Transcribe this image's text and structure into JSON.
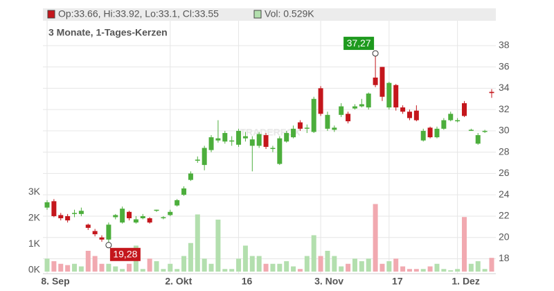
{
  "chart_data": {
    "type": "candlestick",
    "subtitle": "3 Monate, 1-Tages-Kerzen",
    "ohlc_label": "Op:33.66, Hi:33.92, Lo:33.1, Cl:33.55",
    "volume_label": "Vol: 0.529K",
    "watermark": "TRADERFOX",
    "max_label": "37,27",
    "min_label": "19,28",
    "up_color": "#4cae3c",
    "down_color": "#c4161c",
    "vol_up_color": "#b3dfae",
    "vol_down_color": "#f1a9b0",
    "categories": [
      "8. Sep",
      null,
      null,
      null,
      null,
      null,
      null,
      null,
      null,
      null,
      null,
      null,
      null,
      null,
      null,
      null,
      null,
      null,
      "2. Okt",
      null,
      null,
      null,
      null,
      null,
      null,
      null,
      null,
      null,
      "16",
      null,
      null,
      null,
      null,
      null,
      null,
      null,
      null,
      null,
      null,
      null,
      "3. Nov",
      null,
      null,
      null,
      null,
      null,
      null,
      null,
      null,
      null,
      "17",
      null,
      null,
      null,
      null,
      null,
      null,
      null,
      null,
      null,
      "1. Dez",
      null,
      null,
      null,
      null,
      null
    ],
    "open": [
      22.8,
      23.4,
      22.1,
      22.0,
      22.2,
      22.2,
      21.2,
      20.6,
      20.0,
      19.8,
      21.9,
      21.4,
      22.4,
      21.4,
      21.8,
      21.8,
      22.5,
      21.8,
      22.1,
      23.0,
      24.0,
      25.4,
      27.2,
      26.8,
      28.2,
      29.1,
      29.0,
      29.0,
      28.7,
      29.3,
      28.6,
      28.6,
      29.6,
      28.3,
      26.9,
      29.0,
      29.4,
      30.8,
      30.2,
      29.9,
      34.0,
      30.2,
      30.1,
      31.5,
      31.6,
      32.1,
      32.3,
      32.2,
      35.0,
      36.0,
      32.2,
      34.3,
      32.2,
      31.8,
      31.9,
      29.1,
      30.3,
      29.4,
      30.2,
      31.0,
      30.9,
      32.6,
      30.1,
      28.8,
      29.9,
      33.66
    ],
    "high": [
      23.5,
      23.6,
      22.3,
      22.2,
      22.6,
      22.8,
      21.3,
      20.8,
      20.2,
      21.4,
      22.2,
      22.9,
      22.5,
      22.0,
      22.2,
      21.9,
      22.6,
      22.0,
      22.6,
      23.6,
      24.8,
      26.2,
      27.6,
      28.6,
      29.6,
      31.0,
      30.0,
      29.5,
      30.2,
      29.9,
      29.5,
      29.9,
      29.8,
      28.6,
      29.5,
      30.0,
      30.5,
      31.0,
      30.6,
      33.2,
      34.2,
      31.8,
      30.5,
      32.6,
      31.8,
      32.5,
      33.0,
      33.6,
      37.27,
      36.0,
      34.6,
      34.4,
      32.4,
      32.0,
      32.4,
      30.2,
      30.4,
      30.4,
      31.2,
      31.8,
      31.2,
      32.8,
      30.2,
      29.8,
      30.1,
      33.92
    ],
    "low": [
      22.6,
      21.9,
      21.6,
      21.4,
      21.9,
      22.0,
      20.7,
      20.1,
      19.6,
      19.28,
      21.7,
      21.3,
      21.6,
      21.3,
      21.7,
      21.3,
      22.4,
      21.7,
      22.0,
      22.9,
      23.9,
      25.3,
      27.0,
      26.3,
      28.0,
      28.9,
      28.8,
      28.6,
      28.5,
      29.0,
      26.2,
      28.4,
      28.3,
      28.0,
      26.8,
      28.9,
      29.3,
      30.0,
      29.8,
      29.8,
      31.4,
      30.0,
      29.9,
      31.3,
      30.7,
      32.0,
      32.2,
      32.0,
      34.1,
      32.8,
      32.0,
      31.9,
      31.6,
      31.0,
      30.9,
      29.0,
      29.3,
      29.3,
      30.1,
      30.9,
      30.8,
      31.3,
      30.0,
      28.7,
      29.8,
      33.1
    ],
    "close": [
      23.3,
      22.0,
      21.8,
      21.6,
      22.3,
      22.5,
      20.9,
      20.3,
      19.8,
      21.2,
      22.1,
      22.7,
      21.8,
      21.7,
      22.0,
      21.4,
      22.6,
      21.9,
      22.4,
      23.5,
      24.6,
      26.0,
      27.3,
      28.4,
      29.4,
      29.3,
      29.8,
      29.1,
      30.0,
      29.5,
      29.2,
      29.7,
      28.5,
      28.4,
      29.3,
      29.8,
      30.2,
      30.2,
      30.3,
      33.0,
      31.6,
      31.5,
      30.3,
      32.3,
      30.9,
      32.3,
      32.5,
      33.5,
      34.3,
      33.2,
      34.5,
      32.2,
      31.8,
      31.2,
      31.0,
      30.0,
      29.4,
      30.2,
      31.0,
      31.6,
      31.0,
      31.4,
      30.1,
      29.6,
      30.0,
      33.55
    ],
    "volume": [
      0.5,
      0.4,
      0.3,
      0.25,
      0.3,
      0.2,
      0.8,
      0.6,
      0.3,
      0.3,
      0.2,
      0.1,
      0.3,
      1.0,
      0.1,
      0.5,
      0.4,
      0.1,
      0.3,
      0.1,
      0.6,
      1.1,
      2.2,
      0.5,
      0.3,
      2.0,
      0.1,
      0.1,
      0.5,
      1.0,
      0.6,
      0.6,
      0.3,
      0.3,
      0.3,
      0.4,
      0.2,
      0.1,
      0.6,
      1.4,
      0.6,
      0.8,
      0.6,
      0.2,
      0.3,
      0.5,
      0.4,
      0.5,
      2.6,
      0.3,
      0.4,
      0.5,
      0.2,
      0.1,
      0.1,
      0.1,
      0.2,
      0.3,
      0.1,
      0.05,
      0.1,
      2.1,
      0.3,
      0.4,
      0.1,
      0.529
    ],
    "ylim": [
      16.6,
      41.5
    ],
    "yticks": [
      18,
      20,
      22,
      24,
      26,
      28,
      30,
      32,
      34,
      36,
      38
    ],
    "y2lim": [
      -0.08,
      10.13
    ],
    "y2ticks": [
      {
        "value": 0,
        "label": "0K"
      },
      {
        "value": 1,
        "label": "1K"
      },
      {
        "value": 2,
        "label": "2K"
      },
      {
        "value": 3,
        "label": "3K"
      }
    ],
    "grid": true
  }
}
